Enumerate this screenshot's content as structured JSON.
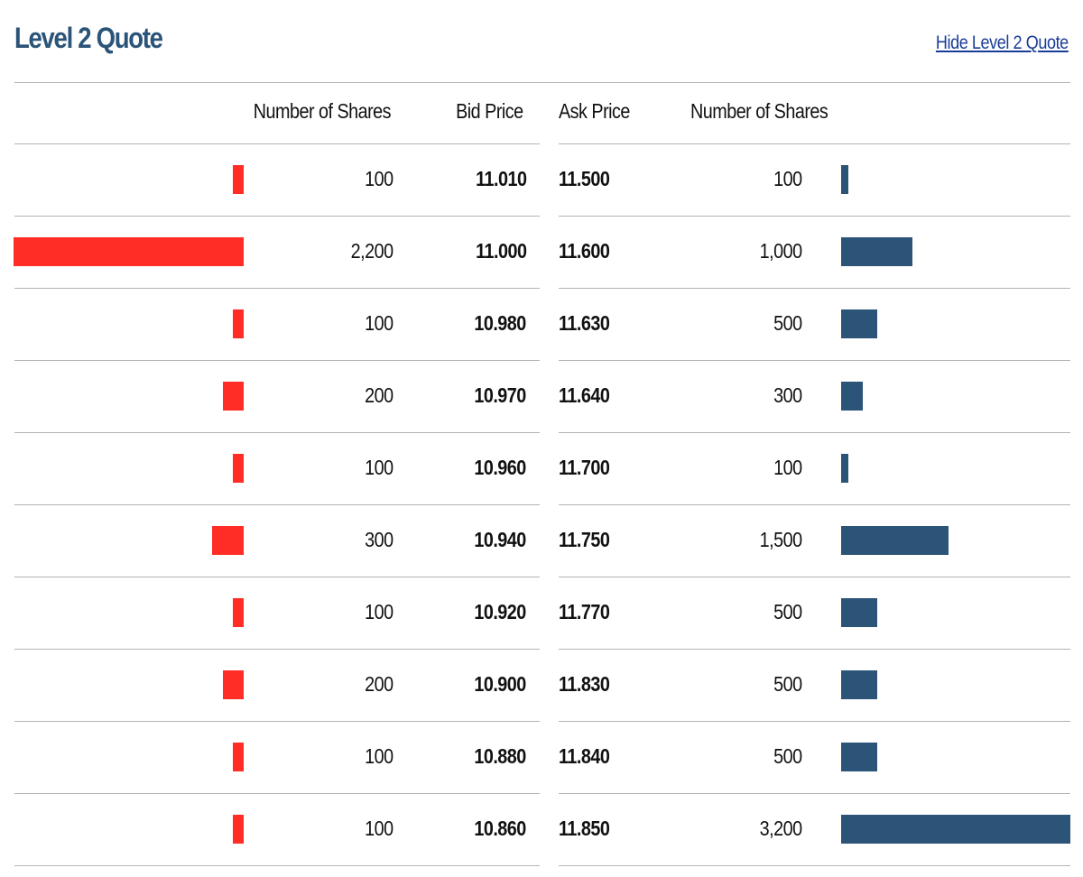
{
  "header": {
    "title": "Level 2 Quote",
    "hide_link": "Hide Level 2 Quote"
  },
  "columns": {
    "bid_shares": "Number of Shares",
    "bid_price": "Bid Price",
    "ask_price": "Ask Price",
    "ask_shares": "Number of Shares"
  },
  "colors": {
    "bid_bar": "#ff2d26",
    "ask_bar": "#2b5478",
    "title": "#2b5478"
  },
  "max_shares": 3200,
  "rows": [
    {
      "bid_shares": "100",
      "bid_qty": 100,
      "bid_price": "11.010",
      "ask_price": "11.500",
      "ask_shares": "100",
      "ask_qty": 100
    },
    {
      "bid_shares": "2,200",
      "bid_qty": 2200,
      "bid_price": "11.000",
      "ask_price": "11.600",
      "ask_shares": "1,000",
      "ask_qty": 1000
    },
    {
      "bid_shares": "100",
      "bid_qty": 100,
      "bid_price": "10.980",
      "ask_price": "11.630",
      "ask_shares": "500",
      "ask_qty": 500
    },
    {
      "bid_shares": "200",
      "bid_qty": 200,
      "bid_price": "10.970",
      "ask_price": "11.640",
      "ask_shares": "300",
      "ask_qty": 300
    },
    {
      "bid_shares": "100",
      "bid_qty": 100,
      "bid_price": "10.960",
      "ask_price": "11.700",
      "ask_shares": "100",
      "ask_qty": 100
    },
    {
      "bid_shares": "300",
      "bid_qty": 300,
      "bid_price": "10.940",
      "ask_price": "11.750",
      "ask_shares": "1,500",
      "ask_qty": 1500
    },
    {
      "bid_shares": "100",
      "bid_qty": 100,
      "bid_price": "10.920",
      "ask_price": "11.770",
      "ask_shares": "500",
      "ask_qty": 500
    },
    {
      "bid_shares": "200",
      "bid_qty": 200,
      "bid_price": "10.900",
      "ask_price": "11.830",
      "ask_shares": "500",
      "ask_qty": 500
    },
    {
      "bid_shares": "100",
      "bid_qty": 100,
      "bid_price": "10.880",
      "ask_price": "11.840",
      "ask_shares": "500",
      "ask_qty": 500
    },
    {
      "bid_shares": "100",
      "bid_qty": 100,
      "bid_price": "10.860",
      "ask_price": "11.850",
      "ask_shares": "3,200",
      "ask_qty": 3200
    }
  ]
}
